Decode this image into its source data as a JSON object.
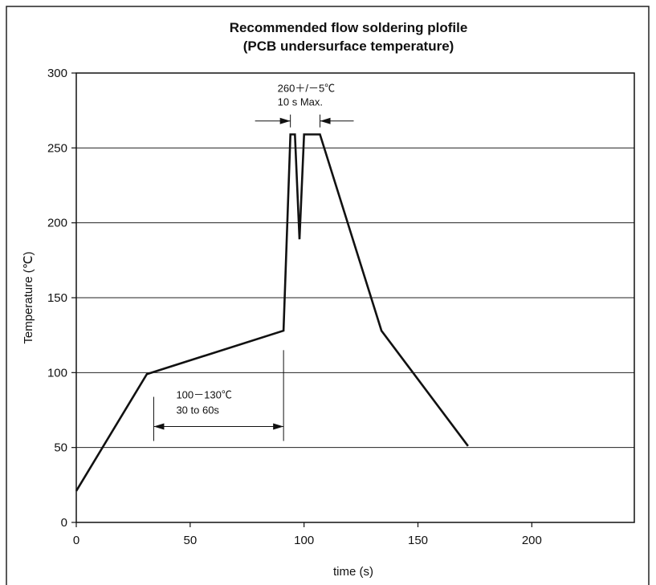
{
  "chart_data": {
    "type": "line",
    "title": "Recommended flow soldering plofile",
    "subtitle": "(PCB undersurface temperature)",
    "xlabel": "time (s)",
    "ylabel": "Temperature (℃)",
    "xlim": [
      0,
      245
    ],
    "ylim": [
      0,
      300
    ],
    "xticks": [
      0,
      50,
      100,
      150,
      200
    ],
    "yticks": [
      0,
      50,
      100,
      150,
      200,
      250,
      300
    ],
    "grid": "horizontal",
    "series": [
      {
        "x": [
          0,
          31,
          91,
          94,
          96,
          98,
          100,
          104,
          107,
          134,
          172
        ],
        "y": [
          21,
          99,
          128,
          259,
          259,
          189,
          259,
          259,
          259,
          128,
          51
        ]
      }
    ],
    "annotations": [
      {
        "lines": [
          "260＋/－5℃",
          "10 s Max."
        ],
        "x_start": 94,
        "x_end": 107,
        "y": 268
      },
      {
        "lines": [
          "100－130℃",
          "30 to 60s"
        ],
        "x_start": 34,
        "x_end": 91,
        "y": 64
      }
    ]
  }
}
